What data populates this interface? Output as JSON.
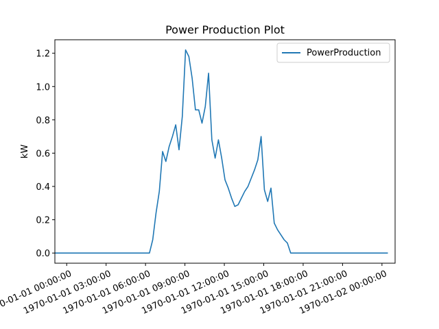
{
  "chart_data": {
    "type": "line",
    "title": "Power Production Plot",
    "xlabel": "",
    "ylabel": "kW",
    "x_unit": "hours",
    "xlim": [
      -0.9,
      25.0
    ],
    "ylim": [
      -0.061,
      1.281
    ],
    "x_ticks": [
      {
        "value": 0,
        "label": "1970-01-01 00:00:00"
      },
      {
        "value": 3,
        "label": "1970-01-01 03:00:00"
      },
      {
        "value": 6,
        "label": "1970-01-01 06:00:00"
      },
      {
        "value": 9,
        "label": "1970-01-01 09:00:00"
      },
      {
        "value": 12,
        "label": "1970-01-01 12:00:00"
      },
      {
        "value": 15,
        "label": "1970-01-01 15:00:00"
      },
      {
        "value": 18,
        "label": "1970-01-01 18:00:00"
      },
      {
        "value": 21,
        "label": "1970-01-01 21:00:00"
      },
      {
        "value": 24,
        "label": "1970-01-02 00:00:00"
      }
    ],
    "y_ticks": [
      {
        "value": 0.0,
        "label": "0.0"
      },
      {
        "value": 0.2,
        "label": "0.2"
      },
      {
        "value": 0.4,
        "label": "0.4"
      },
      {
        "value": 0.6,
        "label": "0.6"
      },
      {
        "value": 0.8,
        "label": "0.8"
      },
      {
        "value": 1.0,
        "label": "1.0"
      },
      {
        "value": 1.2,
        "label": "1.2"
      }
    ],
    "legend": {
      "placement": "upper right",
      "entries": [
        "PowerProduction"
      ]
    },
    "grid": false,
    "series": [
      {
        "name": "PowerProduction",
        "color": "#1f77b4",
        "x": [
          -2.05,
          6.3,
          6.55,
          6.8,
          7.05,
          7.3,
          7.55,
          7.8,
          8.05,
          8.3,
          8.55,
          8.8,
          9.05,
          9.3,
          9.55,
          9.8,
          10.05,
          10.3,
          10.55,
          10.8,
          11.05,
          11.3,
          11.55,
          11.8,
          12.05,
          12.3,
          12.55,
          12.8,
          13.05,
          13.3,
          13.55,
          13.8,
          14.05,
          14.3,
          14.55,
          14.8,
          15.05,
          15.3,
          15.55,
          15.8,
          16.05,
          16.3,
          16.55,
          16.8,
          17.05,
          17.3,
          24.45
        ],
        "y": [
          0.0,
          0.0,
          0.08,
          0.24,
          0.37,
          0.61,
          0.55,
          0.64,
          0.7,
          0.77,
          0.62,
          0.82,
          1.22,
          1.18,
          1.05,
          0.86,
          0.86,
          0.78,
          0.88,
          1.08,
          0.68,
          0.57,
          0.68,
          0.57,
          0.44,
          0.39,
          0.33,
          0.28,
          0.29,
          0.33,
          0.37,
          0.4,
          0.45,
          0.5,
          0.56,
          0.7,
          0.38,
          0.31,
          0.39,
          0.18,
          0.14,
          0.11,
          0.08,
          0.06,
          0.0,
          0.0,
          0.0
        ]
      }
    ]
  }
}
